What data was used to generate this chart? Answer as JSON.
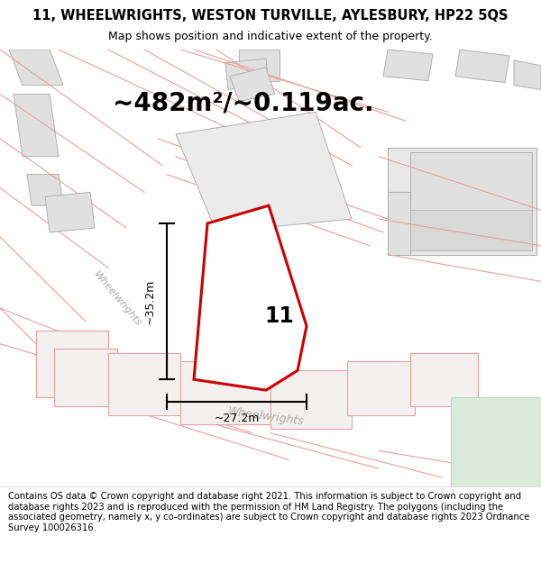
{
  "title_line1": "11, WHEELWRIGHTS, WESTON TURVILLE, AYLESBURY, HP22 5QS",
  "title_line2": "Map shows position and indicative extent of the property.",
  "area_text": "~482m²/~0.119ac.",
  "property_number": "11",
  "dim_width": "~27.2m",
  "dim_height": "~35.2m",
  "street_label": "Wheelwrights",
  "street_label2": "Wheelwrights",
  "footer_text": "Contains OS data © Crown copyright and database right 2021. This information is subject to Crown copyright and database rights 2023 and is reproduced with the permission of HM Land Registry. The polygons (including the associated geometry, namely x, y co-ordinates) are subject to Crown copyright and database rights 2023 Ordnance Survey 100026316.",
  "map_bg": "#ffffff",
  "plot_fill": "#ffffff",
  "plot_outline": "#cc0000",
  "title_fontsize": 10.5,
  "subtitle_fontsize": 9,
  "area_fontsize": 20,
  "footer_fontsize": 7.2,
  "gray_fill": "#e0e0e0",
  "gray_edge": "#b0b0b0",
  "pink_edge": "#e8a0a0",
  "light_pink_fill": "#f5f0f0"
}
